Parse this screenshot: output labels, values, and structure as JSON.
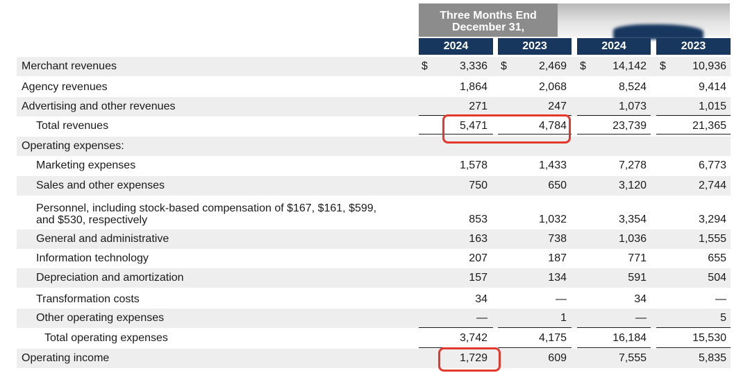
{
  "header": {
    "title_line1": "Three Months End",
    "title_line2": "December 31,",
    "years": [
      "2024",
      "2023",
      "2024",
      "2023"
    ]
  },
  "currency_symbol": "$",
  "rows": [
    {
      "label": "Merchant revenues",
      "values": [
        "3,336",
        "2,469",
        "14,142",
        "10,936"
      ]
    },
    {
      "label": "Agency revenues",
      "values": [
        "1,864",
        "2,068",
        "8,524",
        "9,414"
      ]
    },
    {
      "label": "Advertising and other revenues",
      "values": [
        "271",
        "247",
        "1,073",
        "1,015"
      ]
    },
    {
      "label": "Total revenues",
      "values": [
        "5,471",
        "4,784",
        "23,739",
        "21,365"
      ]
    },
    {
      "label": "Operating expenses:",
      "values": [
        "",
        "",
        "",
        ""
      ]
    },
    {
      "label": "Marketing expenses",
      "values": [
        "1,578",
        "1,433",
        "7,278",
        "6,773"
      ]
    },
    {
      "label": "Sales and other expenses",
      "values": [
        "750",
        "650",
        "3,120",
        "2,744"
      ]
    },
    {
      "label_line1": "Personnel, including stock-based compensation of $167, $161, $599,",
      "label_line2": "and $530, respectively",
      "values": [
        "853",
        "1,032",
        "3,354",
        "3,294"
      ]
    },
    {
      "label": "General and administrative",
      "values": [
        "163",
        "738",
        "1,036",
        "1,555"
      ]
    },
    {
      "label": "Information technology",
      "values": [
        "207",
        "187",
        "771",
        "655"
      ]
    },
    {
      "label": "Depreciation and amortization",
      "values": [
        "157",
        "134",
        "591",
        "504"
      ]
    },
    {
      "label": "Transformation costs",
      "values": [
        "34",
        "—",
        "34",
        "—"
      ]
    },
    {
      "label": "Other operating expenses",
      "values": [
        "—",
        "1",
        "—",
        "5"
      ]
    },
    {
      "label": "Total operating expenses",
      "values": [
        "3,742",
        "4,175",
        "16,184",
        "15,530"
      ]
    },
    {
      "label": "Operating income",
      "values": [
        "1,729",
        "609",
        "7,555",
        "5,835"
      ]
    }
  ],
  "highlight_color": "#e5382c",
  "header_navy": "#17375e"
}
